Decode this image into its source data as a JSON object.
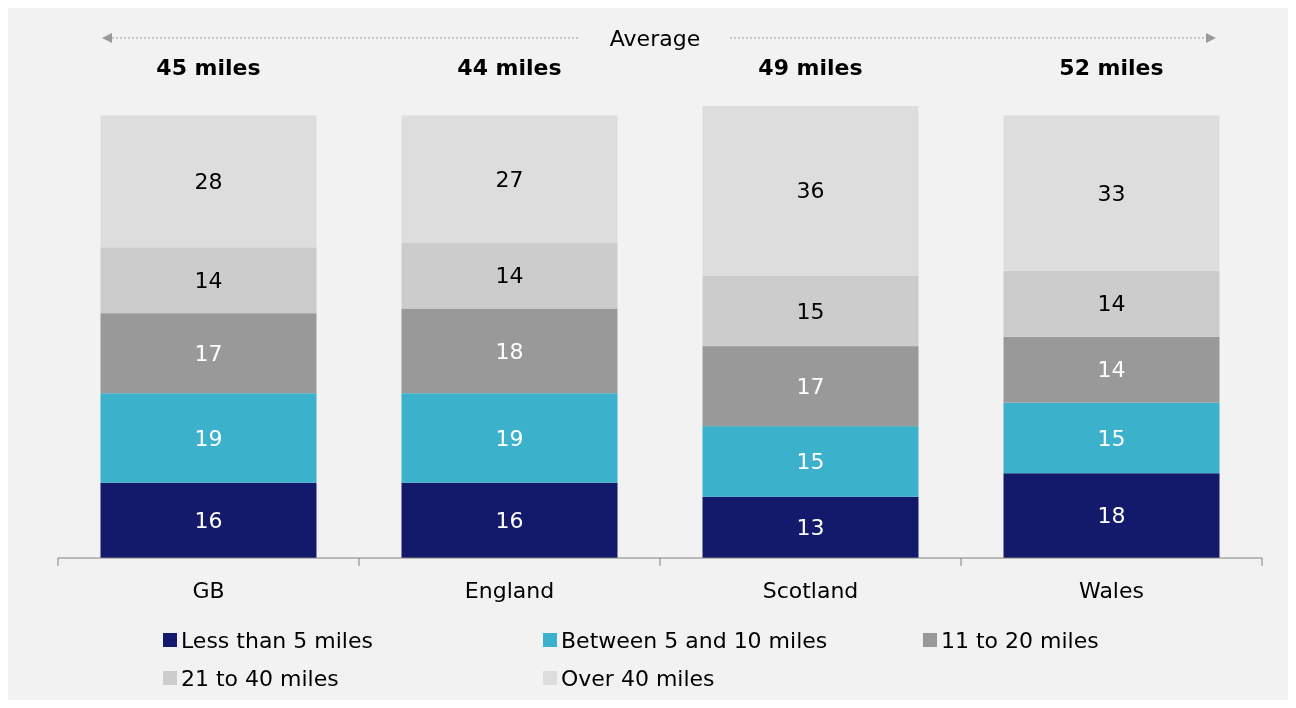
{
  "chart_data": {
    "type": "bar",
    "stacked": true,
    "data_labels": true,
    "legend": "bottom",
    "annotations": [
      "Average",
      "45 miles",
      "44 miles",
      "49 miles",
      "52 miles"
    ],
    "categories": [
      "GB",
      "England",
      "Scotland",
      "Wales"
    ],
    "series": [
      {
        "name": "Less than 5 miles",
        "color": "#141a6b",
        "values": [
          16,
          16,
          13,
          18
        ]
      },
      {
        "name": "Between 5 and 10 miles",
        "color": "#3cb1cc",
        "values": [
          19,
          19,
          15,
          15
        ]
      },
      {
        "name": "11 to 20 miles",
        "color": "#999999",
        "values": [
          17,
          18,
          17,
          14
        ]
      },
      {
        "name": "21 to 40 miles",
        "color": "#cccccc",
        "values": [
          14,
          14,
          15,
          14
        ]
      },
      {
        "name": "Over 40 miles",
        "color": "#dddddd",
        "values": [
          28,
          27,
          36,
          33
        ]
      }
    ]
  }
}
